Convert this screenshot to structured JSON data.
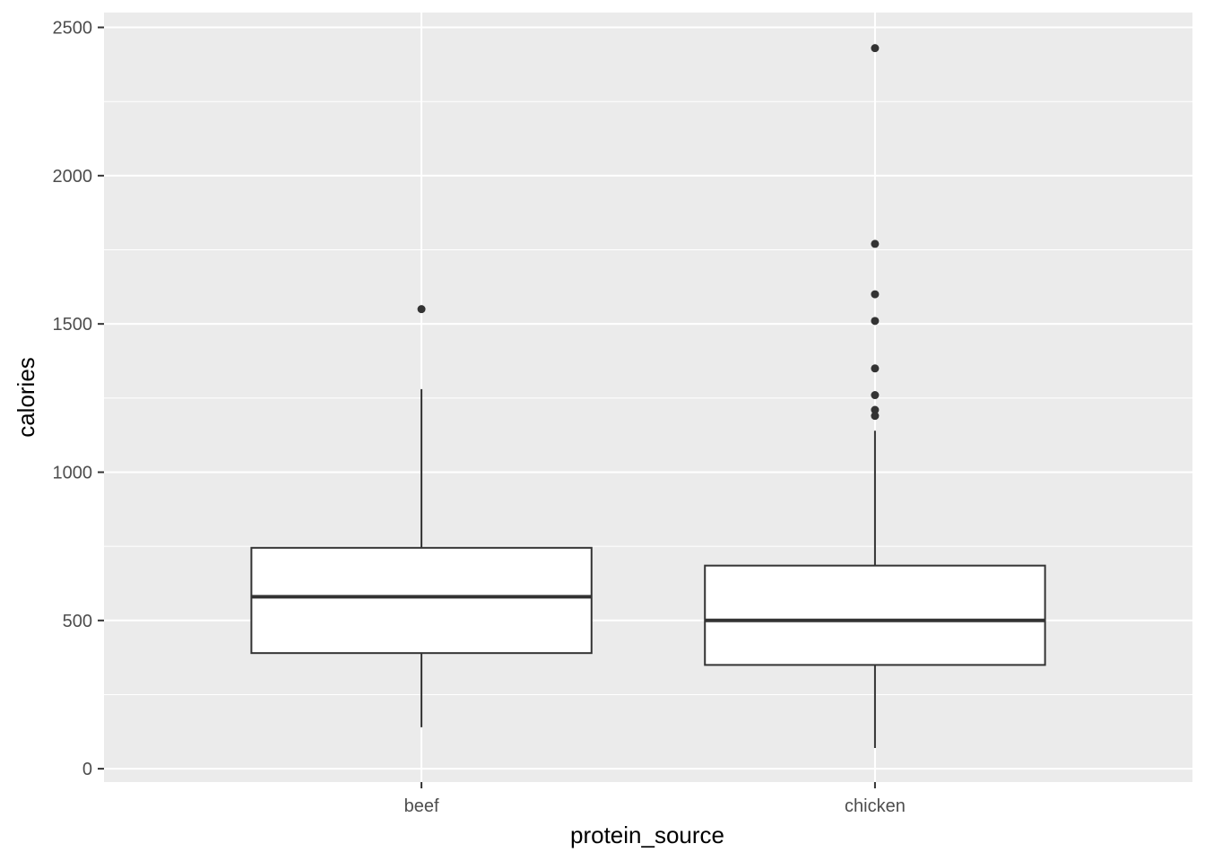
{
  "chart_data": {
    "type": "boxplot",
    "xlabel": "protein_source",
    "ylabel": "calories",
    "ylim": [
      -45,
      2550
    ],
    "yticks": [
      0,
      500,
      1000,
      1500,
      2000,
      2500
    ],
    "grid": true,
    "legend": "none",
    "colors": {
      "panel_background": "#ebebeb",
      "grid": "#ffffff",
      "box_fill": "#ffffff",
      "box_stroke": "#333333",
      "outlier": "#333333",
      "tick_label": "#4d4d4d"
    },
    "categories": [
      "beef",
      "chicken"
    ],
    "boxes": [
      {
        "category": "beef",
        "min": 140,
        "q1": 390,
        "median": 580,
        "q3": 745,
        "max": 1280,
        "outliers": [
          1550
        ]
      },
      {
        "category": "chicken",
        "min": 70,
        "q1": 350,
        "median": 500,
        "q3": 685,
        "max": 1140,
        "outliers": [
          2430,
          1770,
          1600,
          1510,
          1350,
          1260,
          1210,
          1190
        ]
      }
    ]
  }
}
